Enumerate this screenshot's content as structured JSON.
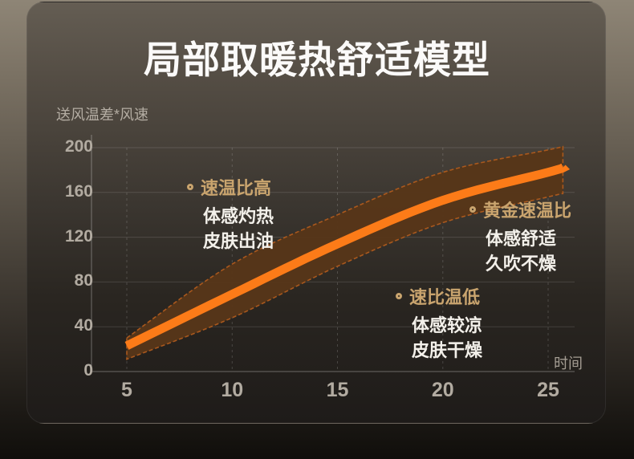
{
  "chart_data": {
    "type": "area",
    "title": "局部取暖热舒适模型",
    "xlabel": "时间",
    "ylabel": "送风温差*风速",
    "xticks": [
      5,
      10,
      15,
      20,
      25
    ],
    "yticks": [
      0,
      40,
      80,
      120,
      160,
      200
    ],
    "xlim": [
      3.3,
      26.5
    ],
    "ylim": [
      0,
      210
    ],
    "grid": true,
    "legend_position": "none",
    "x": [
      5,
      10,
      15,
      20,
      25,
      25.7
    ],
    "series": [
      {
        "name": "band_top",
        "values": [
          30,
          96,
          140,
          178,
          198,
          201
        ]
      },
      {
        "name": "line",
        "values": [
          23,
          69,
          114,
          153,
          178,
          182
        ]
      },
      {
        "name": "band_bottom",
        "values": [
          11,
          48,
          94,
          133,
          156,
          159
        ]
      }
    ],
    "colors": {
      "line": "#FC7B18",
      "band_fill": "#573619",
      "band_border": "#AE5A1D",
      "annotation_accent": "#C9A46E",
      "text_light": "#F3F0EA",
      "axis_text": "#B2ABA1"
    }
  },
  "annotations": [
    {
      "label": "速温比高",
      "lines": [
        "体感灼热",
        "皮肤出油"
      ]
    },
    {
      "label": "黄金速温比",
      "lines": [
        "体感舒适",
        "久吹不燥"
      ]
    },
    {
      "label": "速比温低",
      "lines": [
        "体感较凉",
        "皮肤干燥"
      ]
    }
  ]
}
